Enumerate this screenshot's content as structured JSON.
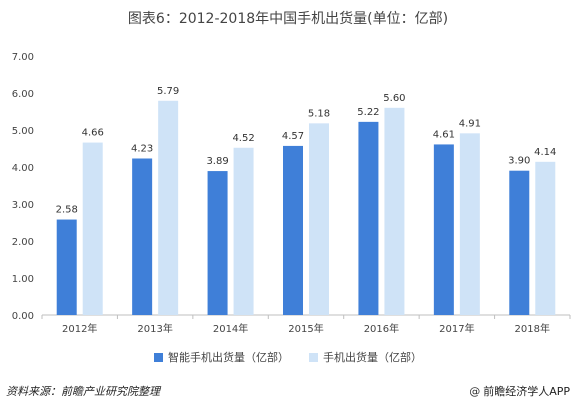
{
  "colors": {
    "series1": "#3f7fd8",
    "series2": "#cfe3f7",
    "axis": "#bfbfbf",
    "text": "#444444"
  },
  "source_text": "资料来源：前瞻产业研究院整理",
  "brand": {
    "icon": "at-icon",
    "icon_glyph": "@",
    "text": "前瞻经济学人APP"
  },
  "chart_data": {
    "type": "bar",
    "title": "图表6：2012-2018年中国手机出货量(单位：亿部)",
    "xlabel": "",
    "ylabel": "",
    "categories": [
      "2012年",
      "2013年",
      "2014年",
      "2015年",
      "2016年",
      "2017年",
      "2018年"
    ],
    "series": [
      {
        "name": "智能手机出货量（亿部）",
        "values": [
          2.58,
          4.23,
          3.89,
          4.57,
          5.22,
          4.61,
          3.9
        ]
      },
      {
        "name": "手机出货量（亿部）",
        "values": [
          4.66,
          5.79,
          4.52,
          5.18,
          5.6,
          4.91,
          4.14
        ]
      }
    ],
    "ylim": [
      0,
      7
    ],
    "yticks": [
      "0.00",
      "1.00",
      "2.00",
      "3.00",
      "4.00",
      "5.00",
      "6.00",
      "7.00"
    ],
    "grid": false,
    "legend_position": "bottom",
    "value_format_decimals": 2
  }
}
